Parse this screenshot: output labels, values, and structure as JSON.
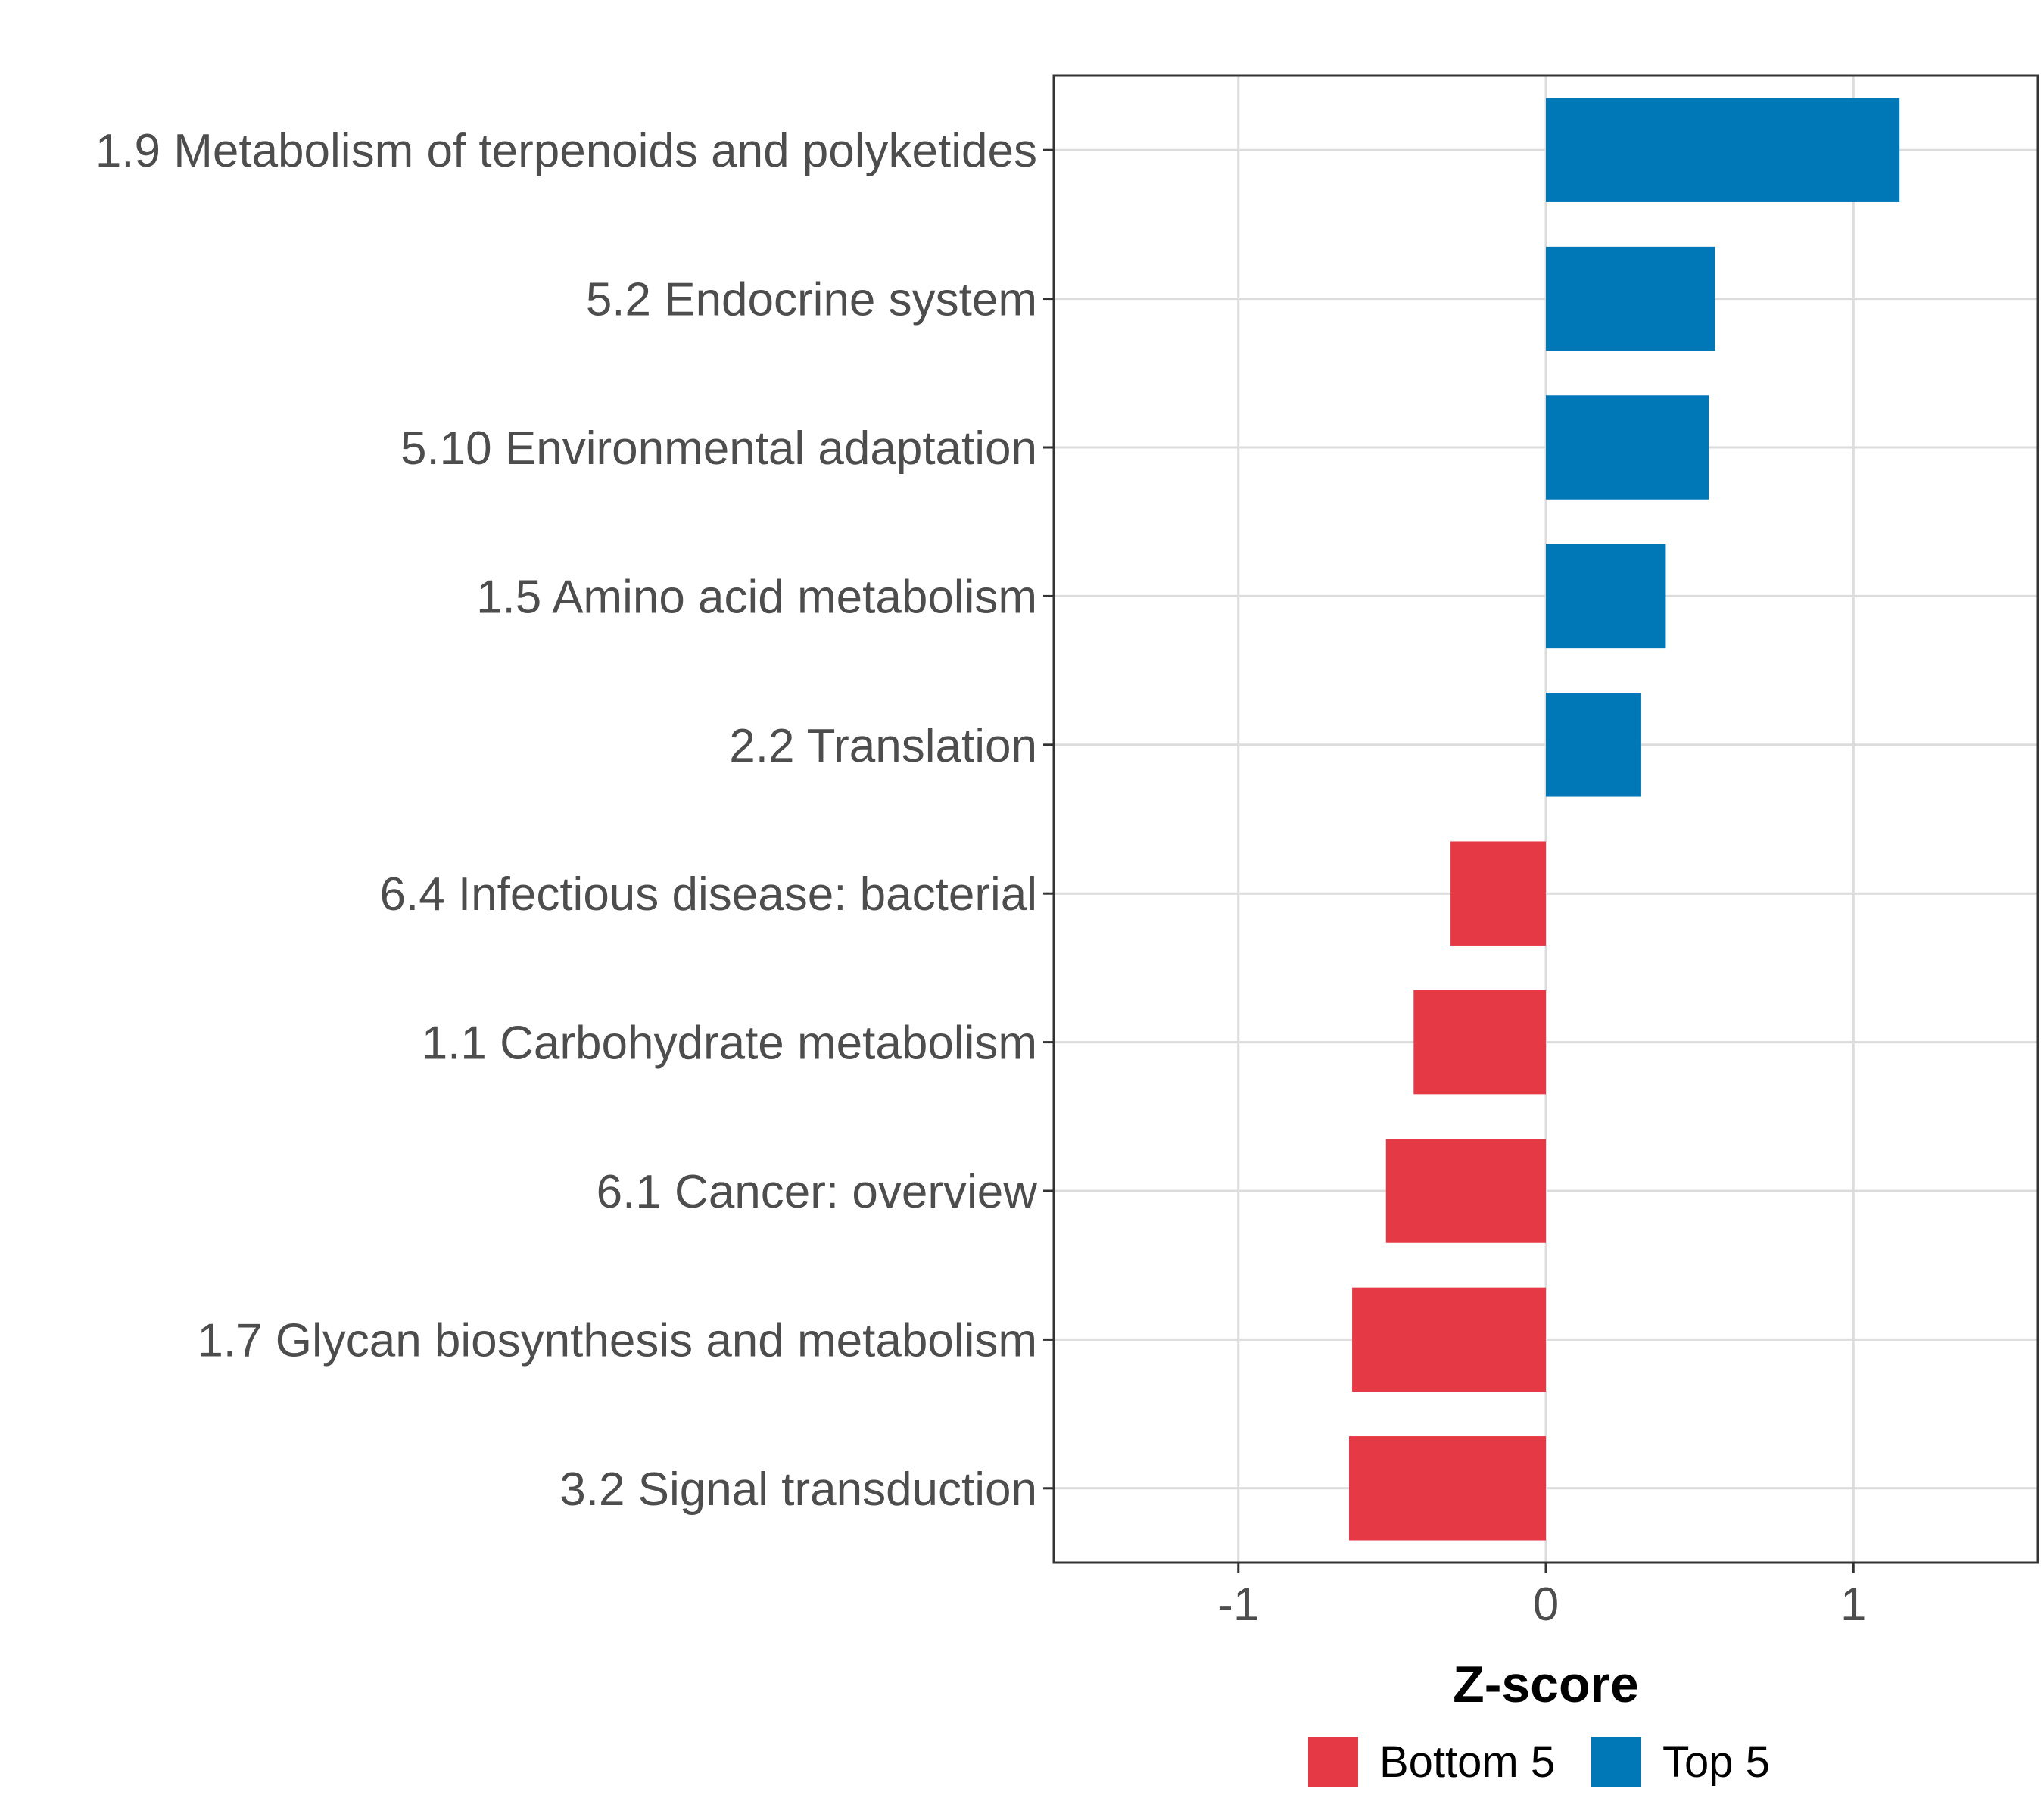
{
  "chart_data": {
    "type": "bar",
    "orientation": "horizontal",
    "title": "",
    "xlabel": "Z-score",
    "ylabel": "",
    "xlim": [
      -1.6,
      1.6
    ],
    "x_ticks": [
      -1,
      0,
      1
    ],
    "x_tick_labels": [
      "-1",
      "0",
      "1"
    ],
    "grid": true,
    "legend_position": "bottom",
    "categories": [
      "1.9 Metabolism of terpenoids and polyketides",
      "5.2 Endocrine system",
      "5.10 Environmental adaptation",
      "1.5 Amino acid metabolism",
      "2.2 Translation",
      "6.4 Infectious disease: bacterial",
      "1.1 Carbohydrate metabolism",
      "6.1 Cancer: overview",
      "1.7 Glycan biosynthesis and metabolism",
      "3.2 Signal transduction"
    ],
    "values": [
      1.15,
      0.55,
      0.53,
      0.39,
      0.31,
      -0.31,
      -0.43,
      -0.52,
      -0.63,
      -0.64
    ],
    "groups": [
      "Top 5",
      "Top 5",
      "Top 5",
      "Top 5",
      "Top 5",
      "Bottom 5",
      "Bottom 5",
      "Bottom 5",
      "Bottom 5",
      "Bottom 5"
    ],
    "legend": [
      {
        "name": "Bottom 5",
        "color": "#e63946"
      },
      {
        "name": "Top 5",
        "color": "#0077b6"
      }
    ]
  }
}
